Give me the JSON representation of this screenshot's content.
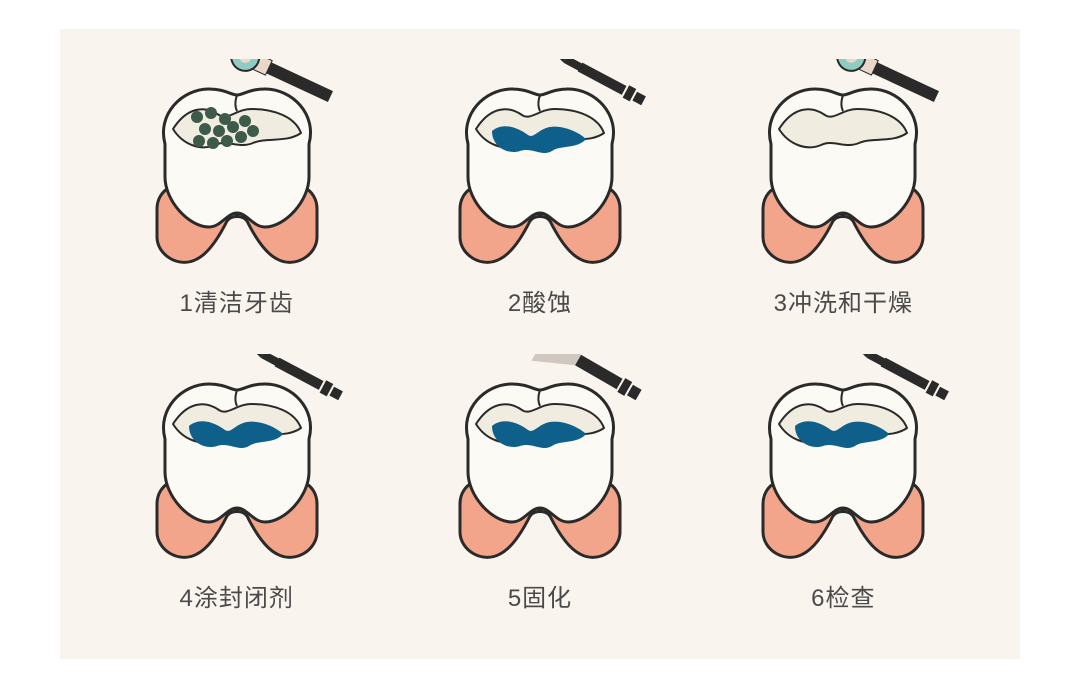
{
  "layout": {
    "panel_bg": "#f9f4ee",
    "caption_color": "#4a4a4a",
    "caption_fontsize": 24
  },
  "tooth": {
    "crown_fill": "#fcfaf4",
    "crown_stroke": "#2a2a2a",
    "crown_stroke_width": 3,
    "top_highlight": "#f0ece0",
    "gum_fill": "#f2a58a",
    "gum_stroke": "#2a2a2a",
    "sealant_fill": "#0e5f8a",
    "bacteria_fill": "#3d5a4a"
  },
  "tools": {
    "handle_fill": "#2a2a2a",
    "polisher_head": "#8fccc4",
    "polisher_ring": "#e9d8c9",
    "applicator_tip": "#2a2a2a",
    "light_cone": "#d0c8c0"
  },
  "steps": [
    {
      "label": "1清洁牙齿",
      "variant": "clean"
    },
    {
      "label": "2酸蚀",
      "variant": "etch"
    },
    {
      "label": "3冲洗和干燥",
      "variant": "rinse"
    },
    {
      "label": "4涂封闭剂",
      "variant": "seal"
    },
    {
      "label": "5固化",
      "variant": "cure"
    },
    {
      "label": "6检查",
      "variant": "check"
    }
  ]
}
